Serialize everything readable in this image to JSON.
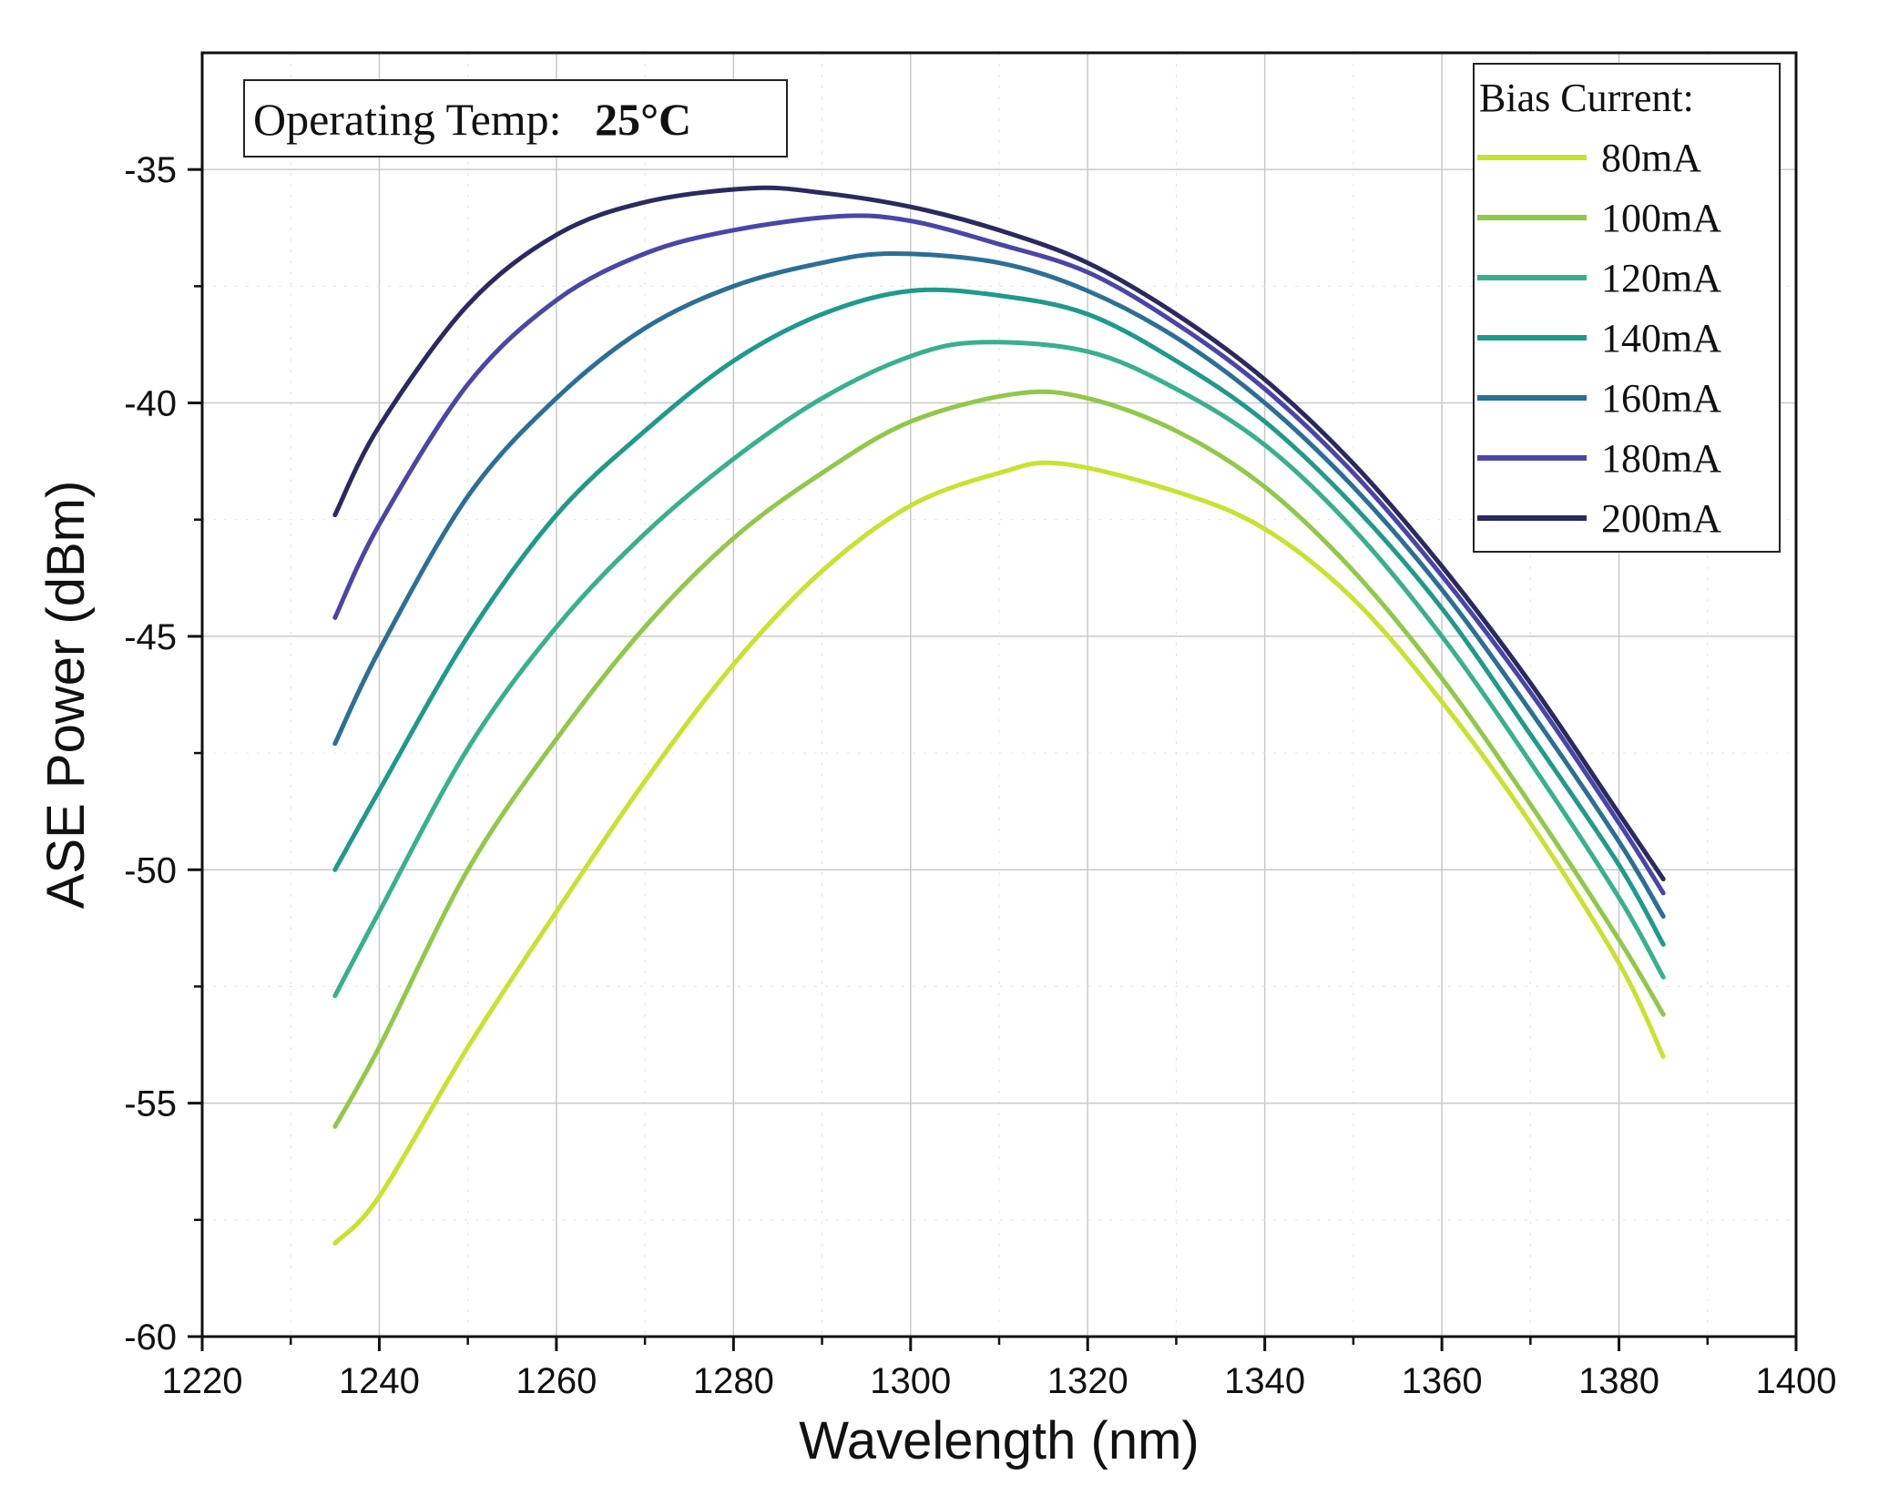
{
  "chart_data": {
    "type": "line",
    "title": "",
    "xlabel": "Wavelength (nm)",
    "ylabel": "ASE Power (dBm)",
    "xlim": [
      1220,
      1400
    ],
    "ylim": [
      -60,
      -32.5
    ],
    "xticks": [
      1220,
      1240,
      1260,
      1280,
      1300,
      1320,
      1340,
      1360,
      1380,
      1400
    ],
    "yticks": [
      -35,
      -40,
      -45,
      -50,
      -55,
      -60
    ],
    "x_minor_step": 10,
    "y_minor_step": 2.5,
    "grid": true,
    "legend": {
      "title": "Bias Current:",
      "position": "top-right"
    },
    "annotation": {
      "label": "Operating Temp:",
      "value": "25°C",
      "position": "top-left"
    },
    "series": [
      {
        "name": "80mA",
        "color": "#c8e22e",
        "x": [
          1235,
          1240,
          1250,
          1260,
          1270,
          1280,
          1290,
          1300,
          1310,
          1317,
          1330,
          1340,
          1350,
          1360,
          1370,
          1380,
          1385
        ],
        "y": [
          -58.0,
          -57.0,
          -53.8,
          -50.9,
          -48.1,
          -45.6,
          -43.6,
          -42.2,
          -41.5,
          -41.3,
          -41.9,
          -42.7,
          -44.2,
          -46.4,
          -49.0,
          -52.0,
          -54.0
        ]
      },
      {
        "name": "100mA",
        "color": "#90c848",
        "x": [
          1235,
          1240,
          1250,
          1260,
          1270,
          1280,
          1290,
          1300,
          1312,
          1320,
          1330,
          1340,
          1350,
          1360,
          1370,
          1380,
          1385
        ],
        "y": [
          -55.5,
          -53.8,
          -50.0,
          -47.2,
          -44.8,
          -42.9,
          -41.5,
          -40.4,
          -39.8,
          -39.9,
          -40.6,
          -41.8,
          -43.6,
          -45.9,
          -48.6,
          -51.5,
          -53.1
        ]
      },
      {
        "name": "120mA",
        "color": "#38b08e",
        "x": [
          1235,
          1240,
          1250,
          1260,
          1270,
          1280,
          1290,
          1300,
          1308,
          1320,
          1330,
          1340,
          1350,
          1360,
          1370,
          1380,
          1385
        ],
        "y": [
          -52.7,
          -50.9,
          -47.4,
          -44.8,
          -42.8,
          -41.2,
          -39.9,
          -39.0,
          -38.7,
          -38.9,
          -39.7,
          -40.9,
          -42.7,
          -45.0,
          -47.7,
          -50.6,
          -52.3
        ]
      },
      {
        "name": "140mA",
        "color": "#1f9a8a",
        "x": [
          1235,
          1240,
          1250,
          1260,
          1270,
          1280,
          1290,
          1300,
          1310,
          1320,
          1330,
          1340,
          1350,
          1360,
          1370,
          1380,
          1385
        ],
        "y": [
          -50.0,
          -48.3,
          -45.0,
          -42.4,
          -40.6,
          -39.1,
          -38.1,
          -37.6,
          -37.7,
          -38.1,
          -39.1,
          -40.4,
          -42.2,
          -44.4,
          -47.1,
          -49.9,
          -51.6
        ]
      },
      {
        "name": "160mA",
        "color": "#2c6f96",
        "x": [
          1235,
          1240,
          1250,
          1260,
          1270,
          1280,
          1290,
          1298,
          1310,
          1320,
          1330,
          1340,
          1350,
          1360,
          1370,
          1380,
          1385
        ],
        "y": [
          -47.3,
          -45.3,
          -42.0,
          -39.9,
          -38.4,
          -37.5,
          -37.0,
          -36.8,
          -37.0,
          -37.6,
          -38.6,
          -40.0,
          -41.8,
          -44.0,
          -46.6,
          -49.4,
          -51.0
        ]
      },
      {
        "name": "180mA",
        "color": "#4a46a8",
        "x": [
          1235,
          1240,
          1250,
          1260,
          1270,
          1280,
          1292,
          1300,
          1310,
          1320,
          1330,
          1340,
          1350,
          1360,
          1370,
          1380,
          1385
        ],
        "y": [
          -44.6,
          -42.6,
          -39.6,
          -37.8,
          -36.8,
          -36.3,
          -36.0,
          -36.1,
          -36.6,
          -37.2,
          -38.3,
          -39.7,
          -41.5,
          -43.7,
          -46.2,
          -49.0,
          -50.5
        ]
      },
      {
        "name": "200mA",
        "color": "#2a2a60",
        "x": [
          1235,
          1240,
          1250,
          1260,
          1270,
          1282,
          1290,
          1300,
          1310,
          1320,
          1330,
          1340,
          1350,
          1360,
          1370,
          1380,
          1385
        ],
        "y": [
          -42.4,
          -40.5,
          -37.9,
          -36.4,
          -35.7,
          -35.4,
          -35.5,
          -35.8,
          -36.3,
          -37.0,
          -38.1,
          -39.5,
          -41.3,
          -43.5,
          -46.0,
          -48.8,
          -50.2
        ]
      }
    ]
  }
}
